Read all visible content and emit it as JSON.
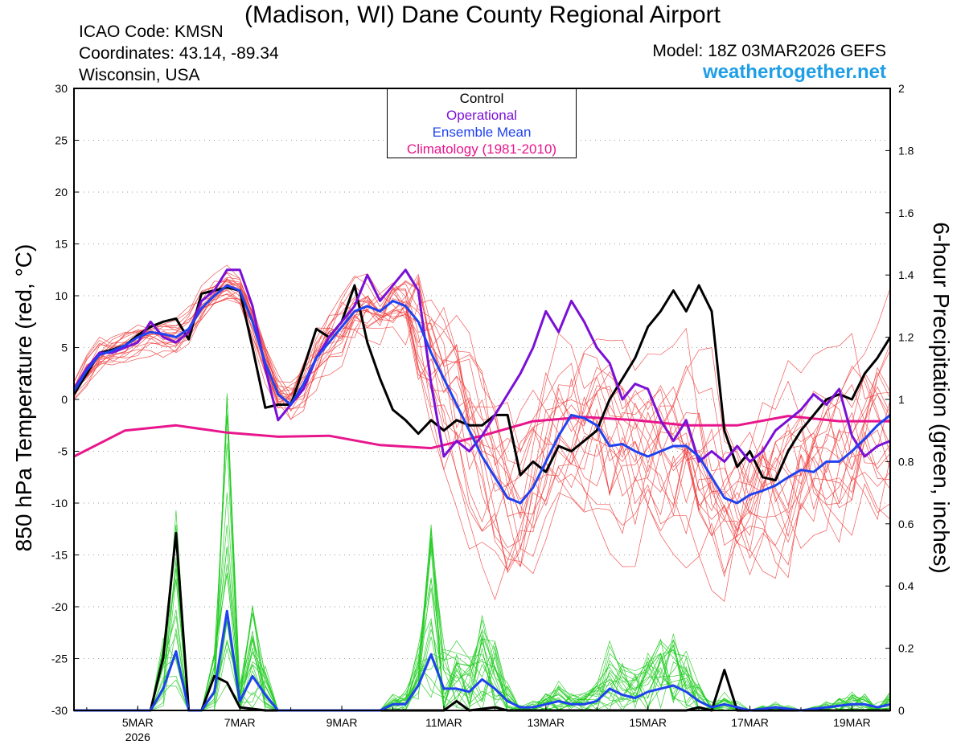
{
  "header": {
    "title": "(Madison, WI) Dane County Regional Airport",
    "icao": "ICAO Code: KMSN",
    "coordinates": "Coordinates: 43.14, -89.34",
    "region": "Wisconsin, USA",
    "model": "Model: 18Z 03MAR2026 GEFS",
    "site": "weathertogether.net"
  },
  "colors": {
    "members": "#ee3b3b",
    "precip": "#22cc22",
    "control": "#000000",
    "operational": "#7a10d6",
    "mean": "#1f42f0",
    "climatology": "#e8168c",
    "site": "#1e9ee6"
  },
  "chart_data": {
    "type": "line",
    "title": "(Madison, WI) Dane County Regional Airport",
    "ylabel": "850 hPa Temperature (red, °C)",
    "y2label": "6-hour Precipitation (green, inches)",
    "x_unit": "day of March 2026 (decimal days)",
    "xlim": [
      3.75,
      19.75
    ],
    "ylim": [
      -30,
      30
    ],
    "y2lim": [
      0,
      2
    ],
    "yticks": [
      30,
      25,
      20,
      15,
      10,
      5,
      0,
      -5,
      -10,
      -15,
      -20,
      -25,
      -30
    ],
    "y2ticks": [
      2,
      1.8,
      1.6,
      1.4,
      1.2,
      1,
      0.8,
      0.6,
      0.4,
      0.2,
      0
    ],
    "xticks": [
      {
        "x": 5,
        "label": "5MAR",
        "sub": "2026"
      },
      {
        "x": 7,
        "label": "7MAR",
        "sub": ""
      },
      {
        "x": 9,
        "label": "9MAR",
        "sub": ""
      },
      {
        "x": 11,
        "label": "11MAR",
        "sub": ""
      },
      {
        "x": 13,
        "label": "13MAR",
        "sub": ""
      },
      {
        "x": 15,
        "label": "15MAR",
        "sub": ""
      },
      {
        "x": 17,
        "label": "17MAR",
        "sub": ""
      },
      {
        "x": 19,
        "label": "19MAR",
        "sub": ""
      }
    ],
    "grid": true,
    "legend": [
      "Control",
      "Operational",
      "Ensemble Mean",
      "Climatology (1981-2010)"
    ],
    "legend_position": "top-center",
    "series": [
      {
        "name": "Control",
        "axis": "temperature",
        "color": "#000000",
        "points": [
          [
            3.75,
            0.5
          ],
          [
            4.0,
            2.5
          ],
          [
            4.25,
            4.5
          ],
          [
            4.5,
            4.8
          ],
          [
            4.75,
            5.2
          ],
          [
            5.0,
            6.2
          ],
          [
            5.25,
            7.0
          ],
          [
            5.5,
            7.5
          ],
          [
            5.75,
            7.8
          ],
          [
            6.0,
            5.8
          ],
          [
            6.25,
            10.2
          ],
          [
            6.5,
            10.5
          ],
          [
            6.75,
            10.8
          ],
          [
            7.0,
            10.5
          ],
          [
            7.25,
            5.0
          ],
          [
            7.5,
            -0.8
          ],
          [
            7.75,
            -0.5
          ],
          [
            8.0,
            -0.5
          ],
          [
            8.25,
            3.0
          ],
          [
            8.5,
            6.8
          ],
          [
            8.75,
            6.0
          ],
          [
            9.0,
            7.5
          ],
          [
            9.25,
            11.0
          ],
          [
            9.5,
            5.5
          ],
          [
            9.75,
            2.0
          ],
          [
            10.0,
            -1.0
          ],
          [
            10.25,
            -2.0
          ],
          [
            10.5,
            -3.3
          ],
          [
            10.75,
            -2.0
          ],
          [
            11.0,
            -3.0
          ],
          [
            11.25,
            -2.0
          ],
          [
            11.5,
            -2.5
          ],
          [
            11.75,
            -2.5
          ],
          [
            12.0,
            -1.5
          ],
          [
            12.25,
            -1.5
          ],
          [
            12.5,
            -7.3
          ],
          [
            12.75,
            -6.0
          ],
          [
            13.0,
            -7.0
          ],
          [
            13.25,
            -4.5
          ],
          [
            13.5,
            -5.0
          ],
          [
            13.75,
            -4.0
          ],
          [
            14.0,
            -3.0
          ],
          [
            14.25,
            0.0
          ],
          [
            14.5,
            2.0
          ],
          [
            14.75,
            4.0
          ],
          [
            15.0,
            7.0
          ],
          [
            15.25,
            8.5
          ],
          [
            15.5,
            10.5
          ],
          [
            15.75,
            8.5
          ],
          [
            16.0,
            11.0
          ],
          [
            16.25,
            8.5
          ],
          [
            16.5,
            -3.0
          ],
          [
            16.75,
            -6.5
          ],
          [
            17.0,
            -5.0
          ],
          [
            17.25,
            -7.5
          ],
          [
            17.5,
            -7.8
          ],
          [
            17.75,
            -5.0
          ],
          [
            18.0,
            -3.0
          ],
          [
            18.25,
            -1.5
          ],
          [
            18.5,
            0.0
          ],
          [
            18.75,
            0.5
          ],
          [
            19.0,
            0.0
          ],
          [
            19.25,
            2.5
          ],
          [
            19.5,
            4.0
          ],
          [
            19.75,
            6.0
          ]
        ]
      },
      {
        "name": "Operational",
        "axis": "temperature",
        "color": "#7a10d6",
        "points": [
          [
            3.75,
            1.0
          ],
          [
            4.0,
            3.0
          ],
          [
            4.25,
            4.5
          ],
          [
            4.5,
            4.5
          ],
          [
            4.75,
            5.0
          ],
          [
            5.0,
            5.5
          ],
          [
            5.25,
            7.5
          ],
          [
            5.5,
            6.0
          ],
          [
            5.75,
            5.5
          ],
          [
            6.0,
            6.5
          ],
          [
            6.25,
            9.5
          ],
          [
            6.5,
            10.5
          ],
          [
            6.75,
            12.5
          ],
          [
            7.0,
            12.5
          ],
          [
            7.25,
            9.0
          ],
          [
            7.5,
            3.0
          ],
          [
            7.75,
            -2.0
          ],
          [
            8.0,
            -0.5
          ],
          [
            8.25,
            1.0
          ],
          [
            8.5,
            4.0
          ],
          [
            8.75,
            6.0
          ],
          [
            9.0,
            7.5
          ],
          [
            9.25,
            9.0
          ],
          [
            9.5,
            12.0
          ],
          [
            9.75,
            9.5
          ],
          [
            10.0,
            11.0
          ],
          [
            10.25,
            12.5
          ],
          [
            10.5,
            10.5
          ],
          [
            10.75,
            1.5
          ],
          [
            11.0,
            -5.5
          ],
          [
            11.25,
            -4.0
          ],
          [
            11.5,
            -5.0
          ],
          [
            11.75,
            -3.5
          ],
          [
            12.0,
            -1.5
          ],
          [
            12.25,
            0.5
          ],
          [
            12.5,
            2.5
          ],
          [
            12.75,
            5.0
          ],
          [
            13.0,
            8.5
          ],
          [
            13.25,
            6.5
          ],
          [
            13.5,
            9.5
          ],
          [
            13.75,
            7.5
          ],
          [
            14.0,
            5.0
          ],
          [
            14.25,
            3.5
          ],
          [
            14.5,
            0.0
          ],
          [
            14.75,
            1.5
          ],
          [
            15.0,
            1.0
          ],
          [
            15.25,
            -2.0
          ],
          [
            15.5,
            -4.0
          ],
          [
            15.75,
            -2.0
          ],
          [
            16.0,
            -6.0
          ],
          [
            16.25,
            -5.0
          ],
          [
            16.5,
            -6.0
          ],
          [
            16.75,
            -4.5
          ],
          [
            17.0,
            -6.0
          ],
          [
            17.25,
            -5.0
          ],
          [
            17.5,
            -3.0
          ],
          [
            17.75,
            -2.0
          ],
          [
            18.0,
            -1.0
          ],
          [
            18.25,
            0.5
          ],
          [
            18.5,
            -0.5
          ],
          [
            18.75,
            1.0
          ],
          [
            19.0,
            -3.5
          ],
          [
            19.25,
            -5.5
          ],
          [
            19.5,
            -4.5
          ],
          [
            19.75,
            -4.0
          ]
        ]
      },
      {
        "name": "Ensemble Mean",
        "axis": "temperature",
        "color": "#1f42f0",
        "points": [
          [
            3.75,
            0.8
          ],
          [
            4.0,
            2.8
          ],
          [
            4.25,
            4.3
          ],
          [
            4.5,
            4.7
          ],
          [
            4.75,
            5.2
          ],
          [
            5.0,
            6.0
          ],
          [
            5.25,
            6.5
          ],
          [
            5.5,
            6.3
          ],
          [
            5.75,
            6.0
          ],
          [
            6.0,
            6.8
          ],
          [
            6.25,
            8.8
          ],
          [
            6.5,
            10.0
          ],
          [
            6.75,
            11.0
          ],
          [
            7.0,
            10.5
          ],
          [
            7.25,
            7.5
          ],
          [
            7.5,
            3.5
          ],
          [
            7.75,
            0.5
          ],
          [
            8.0,
            -0.5
          ],
          [
            8.25,
            1.5
          ],
          [
            8.5,
            4.0
          ],
          [
            8.75,
            5.5
          ],
          [
            9.0,
            7.0
          ],
          [
            9.25,
            8.5
          ],
          [
            9.5,
            9.0
          ],
          [
            9.75,
            8.5
          ],
          [
            10.0,
            9.5
          ],
          [
            10.25,
            9.0
          ],
          [
            10.5,
            7.5
          ],
          [
            10.75,
            4.5
          ],
          [
            11.0,
            2.0
          ],
          [
            11.25,
            -0.5
          ],
          [
            11.5,
            -3.0
          ],
          [
            11.75,
            -5.5
          ],
          [
            12.0,
            -7.5
          ],
          [
            12.25,
            -9.5
          ],
          [
            12.5,
            -10.0
          ],
          [
            12.75,
            -8.5
          ],
          [
            13.0,
            -6.0
          ],
          [
            13.25,
            -3.5
          ],
          [
            13.5,
            -1.5
          ],
          [
            13.75,
            -1.8
          ],
          [
            14.0,
            -2.5
          ],
          [
            14.25,
            -4.5
          ],
          [
            14.5,
            -4.3
          ],
          [
            14.75,
            -5.0
          ],
          [
            15.0,
            -5.5
          ],
          [
            15.25,
            -5.0
          ],
          [
            15.5,
            -4.5
          ],
          [
            15.75,
            -4.5
          ],
          [
            16.0,
            -5.5
          ],
          [
            16.25,
            -7.5
          ],
          [
            16.5,
            -9.5
          ],
          [
            16.75,
            -10.0
          ],
          [
            17.0,
            -9.2
          ],
          [
            17.25,
            -8.8
          ],
          [
            17.5,
            -8.3
          ],
          [
            17.75,
            -7.5
          ],
          [
            18.0,
            -6.8
          ],
          [
            18.25,
            -7.0
          ],
          [
            18.5,
            -6.0
          ],
          [
            18.75,
            -6.0
          ],
          [
            19.0,
            -5.0
          ],
          [
            19.25,
            -3.8
          ],
          [
            19.5,
            -2.5
          ],
          [
            19.75,
            -1.5
          ]
        ]
      },
      {
        "name": "Climatology (1981-2010)",
        "axis": "temperature",
        "color": "#e8168c",
        "points": [
          [
            3.75,
            -5.5
          ],
          [
            4.75,
            -3.0
          ],
          [
            5.75,
            -2.5
          ],
          [
            6.75,
            -3.2
          ],
          [
            7.75,
            -3.6
          ],
          [
            8.75,
            -3.5
          ],
          [
            9.75,
            -4.4
          ],
          [
            10.75,
            -4.7
          ],
          [
            11.75,
            -3.5
          ],
          [
            12.75,
            -2.1
          ],
          [
            13.75,
            -1.7
          ],
          [
            14.75,
            -2.0
          ],
          [
            15.75,
            -2.5
          ],
          [
            16.75,
            -2.5
          ],
          [
            17.75,
            -1.6
          ],
          [
            18.75,
            -2.1
          ],
          [
            19.75,
            -2.1
          ]
        ]
      },
      {
        "name": "Control precipitation",
        "axis": "precipitation",
        "color": "#000000",
        "points": [
          [
            3.75,
            0.0
          ],
          [
            5.0,
            0.0
          ],
          [
            5.25,
            0.0
          ],
          [
            5.5,
            0.17
          ],
          [
            5.75,
            0.57
          ],
          [
            6.0,
            0.0
          ],
          [
            6.25,
            0.0
          ],
          [
            6.5,
            0.11
          ],
          [
            6.75,
            0.09
          ],
          [
            7.0,
            0.01
          ],
          [
            7.5,
            0.0
          ],
          [
            11.0,
            0.0
          ],
          [
            11.25,
            0.03
          ],
          [
            11.5,
            0.0
          ],
          [
            12.0,
            0.01
          ],
          [
            12.25,
            0.0
          ],
          [
            15.75,
            0.0
          ],
          [
            16.0,
            0.01
          ],
          [
            16.25,
            0.0
          ],
          [
            16.5,
            0.13
          ],
          [
            16.75,
            0.0
          ],
          [
            19.75,
            0.0
          ]
        ]
      },
      {
        "name": "Ensemble Mean precipitation",
        "axis": "precipitation",
        "color": "#1f42f0",
        "points": [
          [
            3.75,
            0.0
          ],
          [
            5.0,
            0.0
          ],
          [
            5.25,
            0.0
          ],
          [
            5.5,
            0.07
          ],
          [
            5.75,
            0.19
          ],
          [
            6.0,
            0.0
          ],
          [
            6.25,
            0.0
          ],
          [
            6.5,
            0.06
          ],
          [
            6.75,
            0.32
          ],
          [
            7.0,
            0.03
          ],
          [
            7.25,
            0.11
          ],
          [
            7.5,
            0.05
          ],
          [
            7.75,
            0.0
          ],
          [
            9.75,
            0.0
          ],
          [
            10.0,
            0.02
          ],
          [
            10.25,
            0.02
          ],
          [
            10.5,
            0.08
          ],
          [
            10.75,
            0.18
          ],
          [
            11.0,
            0.07
          ],
          [
            11.25,
            0.07
          ],
          [
            11.5,
            0.06
          ],
          [
            11.75,
            0.1
          ],
          [
            12.0,
            0.07
          ],
          [
            12.25,
            0.03
          ],
          [
            12.5,
            0.01
          ],
          [
            12.75,
            0.01
          ],
          [
            13.0,
            0.02
          ],
          [
            13.25,
            0.03
          ],
          [
            13.5,
            0.02
          ],
          [
            13.75,
            0.02
          ],
          [
            14.0,
            0.03
          ],
          [
            14.25,
            0.07
          ],
          [
            14.5,
            0.05
          ],
          [
            14.75,
            0.04
          ],
          [
            15.0,
            0.06
          ],
          [
            15.25,
            0.07
          ],
          [
            15.5,
            0.08
          ],
          [
            15.75,
            0.06
          ],
          [
            16.0,
            0.03
          ],
          [
            16.25,
            0.01
          ],
          [
            16.5,
            0.02
          ],
          [
            16.75,
            0.01
          ],
          [
            17.0,
            0.0
          ],
          [
            17.5,
            0.01
          ],
          [
            18.0,
            0.0
          ],
          [
            18.5,
            0.01
          ],
          [
            19.0,
            0.02
          ],
          [
            19.25,
            0.02
          ],
          [
            19.5,
            0.01
          ],
          [
            19.75,
            0.02
          ]
        ]
      }
    ]
  }
}
